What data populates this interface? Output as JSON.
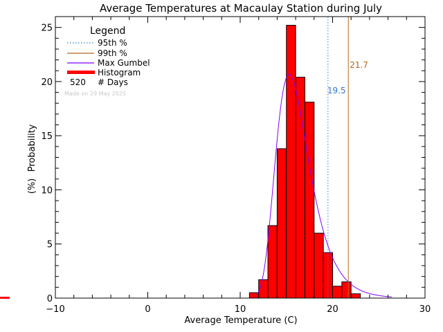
{
  "chart_data": {
    "type": "bar",
    "title": "Average Temperatures at Macaulay Station during July",
    "xlabel": "Average Temperature (C)",
    "ylabel_line1": "Probability",
    "ylabel_line2": "(%)",
    "xlim": [
      -10,
      30
    ],
    "ylim": [
      0,
      26
    ],
    "x_ticks": [
      -10,
      0,
      10,
      20,
      30
    ],
    "x_tick_labels": [
      "−10",
      "0",
      "10",
      "20",
      "30"
    ],
    "y_ticks": [
      0,
      5,
      10,
      15,
      20,
      25
    ],
    "y_tick_labels": [
      "0",
      "5",
      "10",
      "15",
      "20",
      "25"
    ],
    "grid": false,
    "histogram": {
      "bin_width": 1,
      "bins": [
        {
          "x0": 11,
          "value": 0.5
        },
        {
          "x0": 12,
          "value": 1.7
        },
        {
          "x0": 13,
          "value": 6.7
        },
        {
          "x0": 14,
          "value": 13.8
        },
        {
          "x0": 15,
          "value": 25.2
        },
        {
          "x0": 16,
          "value": 20.4
        },
        {
          "x0": 17,
          "value": 18.1
        },
        {
          "x0": 18,
          "value": 6.0
        },
        {
          "x0": 19,
          "value": 4.2
        },
        {
          "x0": 20,
          "value": 1.1
        },
        {
          "x0": 21,
          "value": 1.5
        },
        {
          "x0": 22,
          "value": 0.4
        }
      ],
      "color": "#ff0000"
    },
    "gumbel": {
      "mu": 15.3,
      "beta": 1.78,
      "x_range": [
        11.8,
        26.4
      ],
      "color": "#8000ff"
    },
    "percentile_95": {
      "value": 19.5,
      "label": "19.5",
      "color": "#3377cc"
    },
    "percentile_99": {
      "value": 21.7,
      "label": "21.7",
      "color": "#b5651d"
    },
    "legend": {
      "title": "Legend",
      "entries": [
        {
          "label": "95th %",
          "color": "#3377cc"
        },
        {
          "label": "99th %",
          "color": "#b5651d"
        },
        {
          "label": "Max Gumbel",
          "color": "#8000ff"
        },
        {
          "label": "Histogram",
          "color": "#ff0000"
        }
      ],
      "count_value": "520",
      "count_label": "# Days"
    },
    "made_on": "Made on 29 May 2025"
  }
}
